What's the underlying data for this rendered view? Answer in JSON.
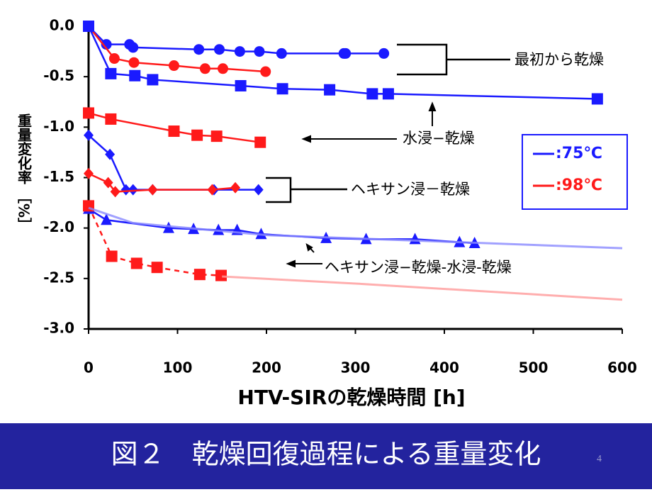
{
  "chart_data": {
    "type": "line",
    "ylabel": "重量変化率 ［%］",
    "xlabel": "HTV-SIRの乾燥時間 [h]",
    "xlim": [
      0,
      600
    ],
    "xticks": [
      0,
      100,
      200,
      300,
      400,
      500,
      600
    ],
    "ylim": [
      -3,
      0
    ],
    "yticks": [
      {
        "value": 0,
        "label": "0.0"
      },
      -0.5,
      {
        "value": -1,
        "label": "-1.0"
      },
      -1.5,
      {
        "value": -2,
        "label": "-2.0"
      },
      -2.5,
      {
        "value": -3,
        "label": "-3.0"
      }
    ],
    "legend": [
      {
        "label": ":75℃",
        "color": "#1a1aff"
      },
      {
        "label": ":98℃",
        "color": "#ff1a1a"
      }
    ],
    "annotations": [
      "最初から乾燥",
      "水浸−乾燥",
      "ヘキサン浸－乾燥",
      "ヘキサン浸−乾燥‐水浸‐乾燥"
    ],
    "series": [
      {
        "color": "#1a1aff",
        "marker": "circle",
        "x": [
          0,
          20,
          46,
          50,
          124,
          147,
          170,
          192,
          217,
          287,
          289,
          332
        ],
        "values": [
          0,
          -0.18,
          -0.18,
          -0.21,
          -0.23,
          -0.23,
          -0.25,
          -0.25,
          -0.27,
          -0.27,
          -0.27,
          -0.27
        ]
      },
      {
        "color": "#ff1a1a",
        "marker": "circle",
        "x": [
          0,
          29,
          51,
          96,
          131,
          151,
          199
        ],
        "values": [
          0,
          -0.32,
          -0.36,
          -0.39,
          -0.42,
          -0.42,
          -0.45
        ]
      },
      {
        "color": "#1a1aff",
        "marker": "square",
        "x": [
          0,
          25,
          52,
          72,
          171,
          218,
          271,
          319,
          337,
          572
        ],
        "values": [
          0,
          -0.47,
          -0.49,
          -0.53,
          -0.59,
          -0.62,
          -0.63,
          -0.67,
          -0.67,
          -0.72
        ]
      },
      {
        "color": "#ff1a1a",
        "marker": "square",
        "x": [
          0,
          25,
          96,
          122,
          144,
          193
        ],
        "values": [
          -0.86,
          -0.92,
          -1.04,
          -1.08,
          -1.09,
          -1.15
        ]
      },
      {
        "color": "#1a1aff",
        "marker": "diamond",
        "x": [
          0,
          24,
          42,
          50,
          72,
          141,
          191
        ],
        "values": [
          -1.08,
          -1.27,
          -1.62,
          -1.62,
          -1.62,
          -1.62,
          -1.62
        ]
      },
      {
        "color": "#ff1a1a",
        "marker": "diamond",
        "x": [
          0,
          22,
          30,
          72,
          139,
          165
        ],
        "values": [
          -1.46,
          -1.55,
          -1.64,
          -1.62,
          -1.62,
          -1.6
        ]
      },
      {
        "color": "#1a1aff",
        "marker": "triangle",
        "x": [
          0,
          20,
          90,
          118,
          146,
          167,
          194,
          267,
          312,
          367,
          417,
          434
        ],
        "values": [
          -1.81,
          -1.92,
          -2.0,
          -2.01,
          -2.02,
          -2.02,
          -2.06,
          -2.1,
          -2.11,
          -2.11,
          -2.14,
          -2.15
        ]
      },
      {
        "color": "#ff1a1a",
        "marker": "square",
        "dash": true,
        "x": [
          0,
          26,
          54,
          77,
          125,
          149
        ],
        "values": [
          -1.78,
          -2.28,
          -2.35,
          -2.39,
          -2.46,
          -2.47
        ]
      },
      {
        "color": "#8a8aff",
        "marker": "none",
        "x": [
          0,
          50,
          200,
          600
        ],
        "values": [
          -1.8,
          -1.95,
          -2.07,
          -2.2
        ]
      },
      {
        "color": "#ff9a9a",
        "marker": "none",
        "x": [
          150,
          300,
          600
        ],
        "values": [
          -2.48,
          -2.55,
          -2.71
        ]
      }
    ]
  },
  "slide": {
    "caption": "図２　乾燥回復過程による重量変化",
    "page_number": "4"
  }
}
